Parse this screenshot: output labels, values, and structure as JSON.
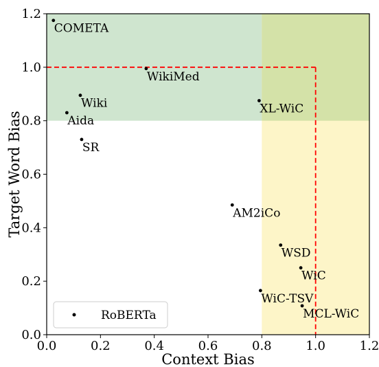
{
  "chart_data": {
    "type": "scatter",
    "xlabel": "Context Bias",
    "ylabel": "Target Word Bias",
    "xlim": [
      0.0,
      1.2
    ],
    "ylim": [
      0.0,
      1.2
    ],
    "xticks": [
      "0.0",
      "0.2",
      "0.4",
      "0.6",
      "0.8",
      "1.0",
      "1.2"
    ],
    "yticks": [
      "0.0",
      "0.2",
      "0.4",
      "0.6",
      "0.8",
      "1.0",
      "1.2"
    ],
    "grid": false,
    "legend": {
      "position": "lower-left",
      "entries": [
        "RoBERTa"
      ]
    },
    "regions": [
      {
        "name": "high-target-bias",
        "x": [
          0.0,
          1.2
        ],
        "y": [
          0.8,
          1.2
        ],
        "color": "#cfe5cf"
      },
      {
        "name": "high-context-bias",
        "x": [
          0.8,
          1.2
        ],
        "y": [
          0.0,
          1.2
        ],
        "color": "#fdf5c8"
      },
      {
        "name": "overlap",
        "x": [
          0.8,
          1.2
        ],
        "y": [
          0.8,
          1.2
        ],
        "color": "#d4e2a8"
      }
    ],
    "threshold_lines": {
      "x": 1.0,
      "y": 1.0,
      "style": "dashed",
      "color": "#ff0000"
    },
    "series": [
      {
        "name": "RoBERTa",
        "points": [
          {
            "label": "COMETA",
            "x": 0.025,
            "y": 1.175
          },
          {
            "label": "WikiMed",
            "x": 0.37,
            "y": 0.995
          },
          {
            "label": "Wiki",
            "x": 0.125,
            "y": 0.895
          },
          {
            "label": "XL-WiC",
            "x": 0.79,
            "y": 0.875
          },
          {
            "label": "Aida",
            "x": 0.075,
            "y": 0.83
          },
          {
            "label": "SR",
            "x": 0.13,
            "y": 0.73
          },
          {
            "label": "AM2iCo",
            "x": 0.69,
            "y": 0.485
          },
          {
            "label": "WSD",
            "x": 0.87,
            "y": 0.335
          },
          {
            "label": "WiC",
            "x": 0.945,
            "y": 0.25
          },
          {
            "label": "WiC-TSV",
            "x": 0.795,
            "y": 0.165
          },
          {
            "label": "MCL-WiC",
            "x": 0.95,
            "y": 0.108
          }
        ]
      }
    ]
  }
}
